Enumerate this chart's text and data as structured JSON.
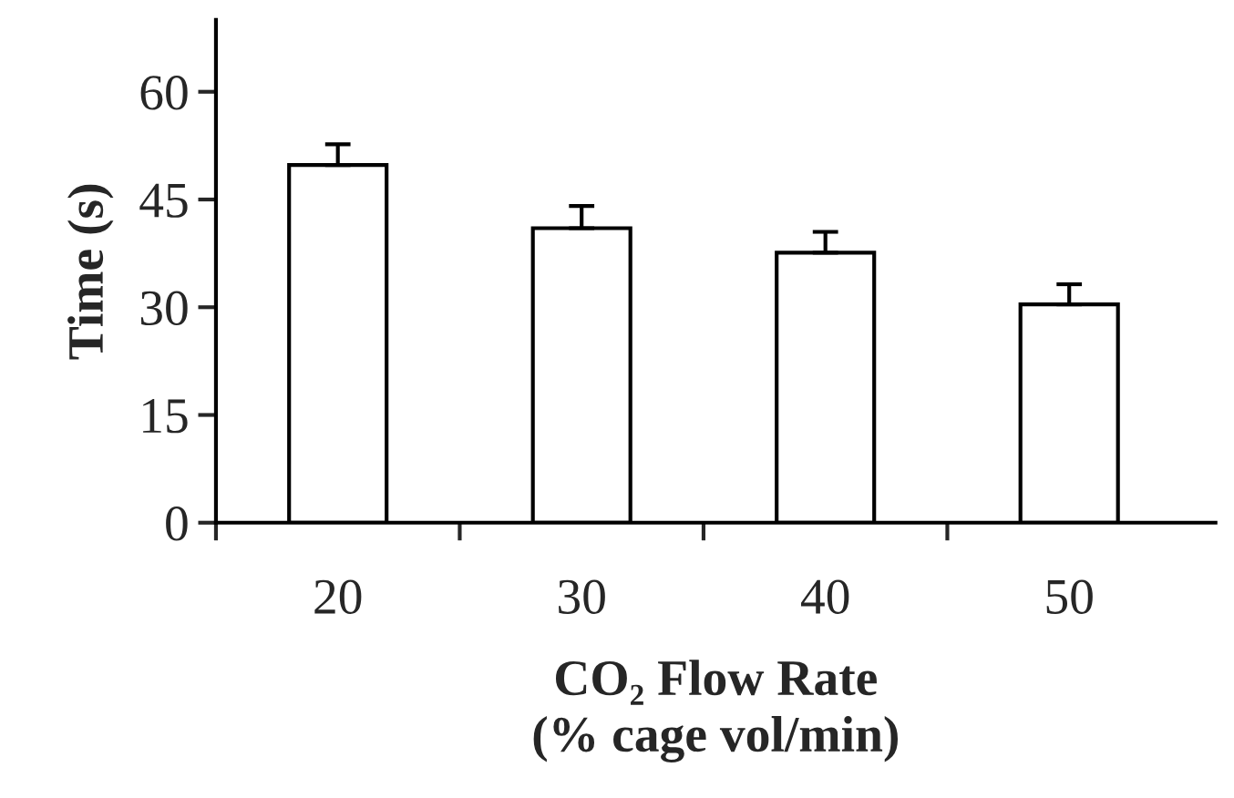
{
  "chart_data": {
    "type": "bar",
    "xlabel": "CO₂ Flow Rate\n(% cage vol/min)",
    "ylabel": "Time (s)",
    "categories": [
      "20",
      "30",
      "40",
      "50"
    ],
    "values": [
      49.8,
      41.0,
      37.6,
      30.4
    ],
    "errors": [
      [
        49.8,
        52.7
      ],
      [
        41.0,
        44.1
      ],
      [
        37.6,
        40.5
      ],
      [
        30.4,
        33.2
      ]
    ],
    "color": "#ffffff",
    "ylim": [
      0,
      70
    ],
    "yticks": [
      0,
      15,
      30,
      45,
      60
    ],
    "grid": false,
    "legend": false
  }
}
